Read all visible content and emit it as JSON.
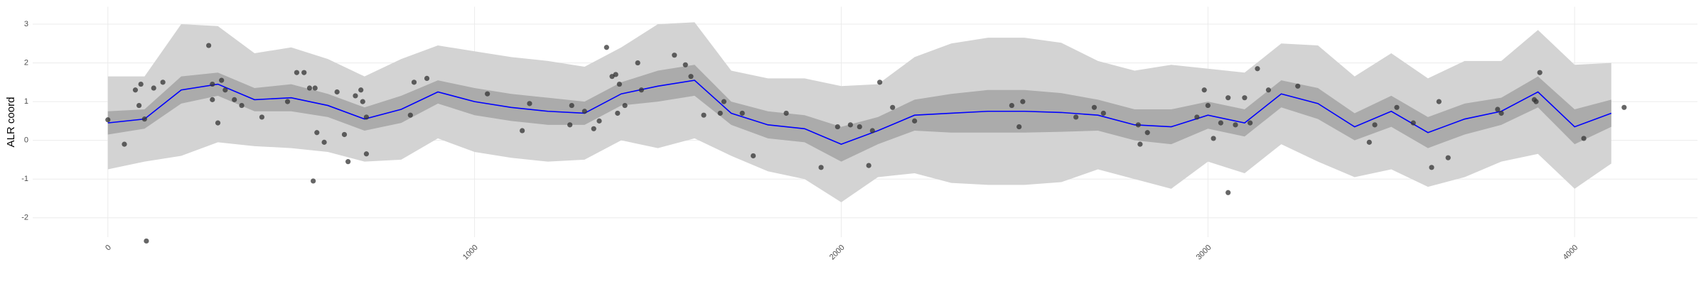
{
  "chart_data": {
    "type": "line",
    "y_label": "ALR coord",
    "xlim": [
      -205,
      4335
    ],
    "ylim": [
      -2.5,
      3.45
    ],
    "xticks": [
      0,
      1000,
      2000,
      3000,
      4000
    ],
    "yticks": [
      -2,
      -1,
      0,
      1,
      2,
      3
    ],
    "grid": true,
    "x": [
      0,
      100,
      200,
      300,
      400,
      500,
      600,
      700,
      800,
      900,
      1000,
      1100,
      1200,
      1300,
      1400,
      1500,
      1600,
      1700,
      1800,
      1900,
      2000,
      2100,
      2200,
      2300,
      2400,
      2500,
      2600,
      2700,
      2800,
      2900,
      3000,
      3100,
      3200,
      3300,
      3400,
      3500,
      3600,
      3700,
      3800,
      3900,
      4000,
      4100
    ],
    "bands": [
      {
        "color": "#d3d3d3",
        "lower": [
          -0.75,
          -0.55,
          -0.4,
          -0.05,
          -0.15,
          -0.2,
          -0.3,
          -0.55,
          -0.5,
          0.05,
          -0.3,
          -0.45,
          -0.55,
          -0.5,
          0,
          -0.2,
          0.05,
          -0.4,
          -0.8,
          -1.0,
          -1.6,
          -0.95,
          -0.85,
          -1.1,
          -1.15,
          -1.15,
          -1.08,
          -0.75,
          -1.0,
          -1.25,
          -0.55,
          -0.85,
          -0.1,
          -0.55,
          -0.95,
          -0.75,
          -1.2,
          -0.95,
          -0.55,
          -0.35,
          -1.25,
          -0.6
        ],
        "upper": [
          1.65,
          1.65,
          3.0,
          2.95,
          2.25,
          2.4,
          2.1,
          1.65,
          2.1,
          2.45,
          2.3,
          2.15,
          2.05,
          1.9,
          2.4,
          3.0,
          3.05,
          1.8,
          1.6,
          1.6,
          1.4,
          1.45,
          2.15,
          2.5,
          2.65,
          2.65,
          2.52,
          2.05,
          1.8,
          1.95,
          1.85,
          1.75,
          2.5,
          2.45,
          1.65,
          2.25,
          1.6,
          2.05,
          2.05,
          2.85,
          1.95,
          2.0
        ]
      },
      {
        "color": "#ababab",
        "lower": [
          0.15,
          0.3,
          0.95,
          1.15,
          0.75,
          0.75,
          0.6,
          0.25,
          0.45,
          0.95,
          0.65,
          0.5,
          0.4,
          0.4,
          0.9,
          1.0,
          1.15,
          0.4,
          0.05,
          -0.05,
          -0.55,
          -0.1,
          0.25,
          0.2,
          0.2,
          0.2,
          0.22,
          0.25,
          0,
          -0.1,
          0.3,
          0.1,
          0.85,
          0.55,
          0,
          0.35,
          -0.2,
          0.15,
          0.4,
          0.85,
          -0.1,
          0.35
        ],
        "upper": [
          0.75,
          0.8,
          1.65,
          1.75,
          1.35,
          1.45,
          1.2,
          0.85,
          1.15,
          1.55,
          1.35,
          1.2,
          1.1,
          1.0,
          1.5,
          1.8,
          1.95,
          1.0,
          0.75,
          0.65,
          0.35,
          0.6,
          1.05,
          1.2,
          1.3,
          1.3,
          1.22,
          1.05,
          0.8,
          0.8,
          1.0,
          0.8,
          1.55,
          1.35,
          0.7,
          1.15,
          0.6,
          0.95,
          1.1,
          1.65,
          0.8,
          1.05
        ]
      }
    ],
    "series": [
      {
        "color": "#0000ff",
        "values": [
          0.45,
          0.55,
          1.3,
          1.45,
          1.05,
          1.1,
          0.9,
          0.55,
          0.8,
          1.25,
          1.0,
          0.85,
          0.75,
          0.7,
          1.2,
          1.4,
          1.55,
          0.7,
          0.4,
          0.3,
          -0.1,
          0.25,
          0.65,
          0.7,
          0.75,
          0.75,
          0.72,
          0.65,
          0.4,
          0.35,
          0.65,
          0.45,
          1.2,
          0.95,
          0.35,
          0.75,
          0.2,
          0.55,
          0.75,
          1.25,
          0.35,
          0.7
        ]
      }
    ],
    "points": {
      "color": "#333333",
      "x": [
        0,
        45,
        75,
        90,
        85,
        105,
        100,
        125,
        150,
        275,
        285,
        285,
        300,
        310,
        320,
        345,
        365,
        420,
        490,
        515,
        535,
        550,
        565,
        560,
        570,
        590,
        625,
        645,
        655,
        675,
        690,
        695,
        705,
        705,
        825,
        835,
        870,
        1035,
        1130,
        1150,
        1260,
        1265,
        1300,
        1325,
        1340,
        1360,
        1375,
        1385,
        1390,
        1395,
        1410,
        1445,
        1455,
        1545,
        1575,
        1590,
        1625,
        1670,
        1680,
        1730,
        1760,
        1850,
        1945,
        1990,
        2025,
        2050,
        2075,
        2085,
        2105,
        2140,
        2200,
        2465,
        2485,
        2495,
        2640,
        2690,
        2715,
        2810,
        2815,
        2835,
        2970,
        2990,
        3000,
        3015,
        3035,
        3055,
        3055,
        3075,
        3100,
        3115,
        3135,
        3165,
        3245,
        3440,
        3455,
        3515,
        3560,
        3610,
        3630,
        3655,
        3790,
        3800,
        3890,
        3895,
        3905,
        4025,
        4135
      ],
      "y": [
        0.53,
        -0.1,
        1.3,
        1.45,
        0.9,
        -2.6,
        0.55,
        1.35,
        1.5,
        2.45,
        1.45,
        1.05,
        0.45,
        1.55,
        1.3,
        1.05,
        0.9,
        0.6,
        1.0,
        1.75,
        1.75,
        1.35,
        1.35,
        -1.05,
        0.2,
        -0.05,
        1.25,
        0.15,
        -0.55,
        1.15,
        1.3,
        1.0,
        -0.35,
        0.6,
        0.65,
        1.5,
        1.6,
        1.2,
        0.25,
        0.95,
        0.4,
        0.9,
        0.75,
        0.3,
        0.5,
        2.4,
        1.65,
        1.7,
        0.7,
        1.45,
        0.9,
        2.0,
        1.3,
        2.2,
        1.95,
        1.65,
        0.65,
        0.7,
        1.0,
        0.7,
        -0.4,
        0.7,
        -0.7,
        0.35,
        0.4,
        0.35,
        -0.65,
        0.25,
        1.5,
        0.85,
        0.5,
        0.9,
        0.35,
        1.0,
        0.6,
        0.85,
        0.7,
        0.4,
        -0.1,
        0.2,
        0.6,
        1.3,
        0.9,
        0.05,
        0.45,
        1.1,
        -1.35,
        0.4,
        1.1,
        0.45,
        1.85,
        1.3,
        1.4,
        -0.05,
        0.4,
        0.85,
        0.45,
        -0.7,
        1.0,
        -0.45,
        0.8,
        0.7,
        1.05,
        1.0,
        1.75,
        0.05,
        0.85
      ]
    }
  }
}
